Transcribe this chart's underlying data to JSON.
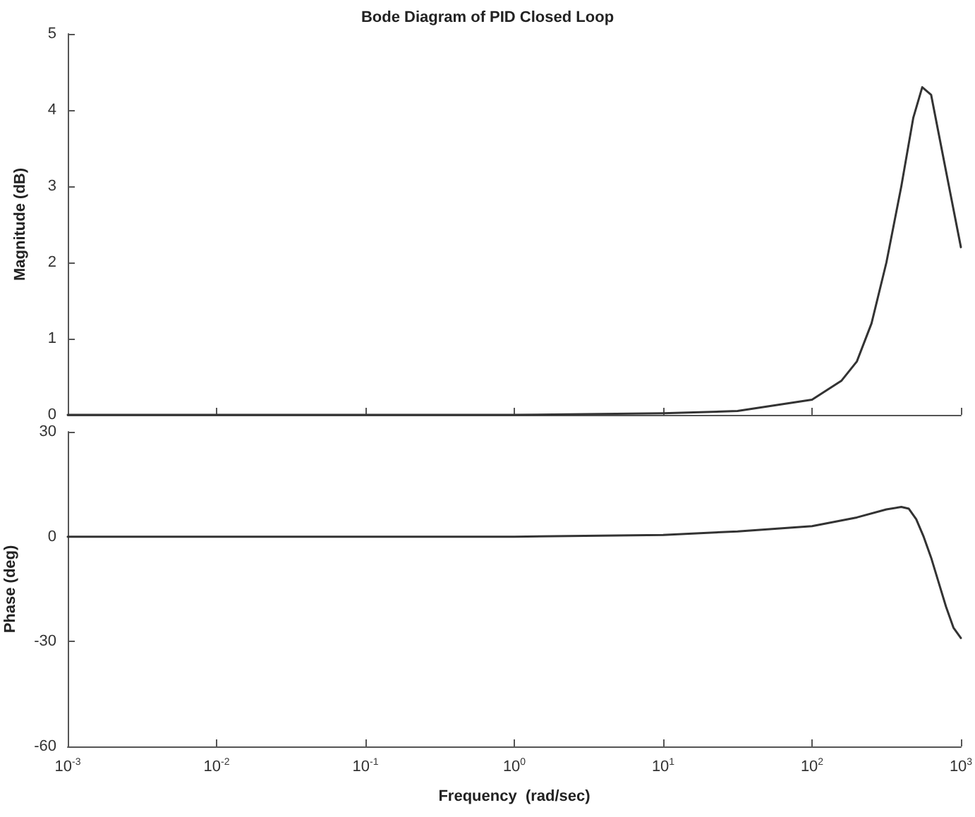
{
  "chart_data": [
    {
      "type": "line",
      "title": "Bode Diagram of PID Closed Loop",
      "ylabel": "Magnitude (dB)",
      "log": "x",
      "grid": false,
      "marker": "none",
      "line_style": "solid",
      "tick_labels": "y",
      "xlim": [
        0.001,
        1000
      ],
      "xticks": [
        {
          "value": 0.001,
          "label": null
        },
        {
          "value": 0.01,
          "label": null
        },
        {
          "value": 0.1,
          "label": null
        },
        {
          "value": 1,
          "label": null
        },
        {
          "value": 10,
          "label": null
        },
        {
          "value": 100,
          "label": null
        },
        {
          "value": 1000,
          "label": null
        }
      ],
      "ylim": [
        0,
        5
      ],
      "yticks": [
        0,
        1,
        2,
        3,
        4,
        5
      ],
      "series": [
        {
          "color": "#333333",
          "x": [
            0.001,
            0.01,
            0.1,
            1,
            10,
            31.6,
            100,
            158,
            200,
            251,
            316,
            398,
            479,
            550,
            631,
            794,
            1000
          ],
          "values": [
            0,
            0,
            0,
            0,
            0.02,
            0.05,
            0.2,
            0.45,
            0.7,
            1.2,
            2.0,
            3.0,
            3.9,
            4.3,
            4.2,
            3.2,
            2.2
          ]
        }
      ]
    },
    {
      "type": "line",
      "xlabel": "Frequency  (rad/sec)",
      "ylabel": "Phase (deg)",
      "log": "x",
      "grid": false,
      "marker": "none",
      "line_style": "solid",
      "xlim": [
        0.001,
        1000
      ],
      "xticks": [
        {
          "value": 0.001,
          "label": "10$^{-3}$"
        },
        {
          "value": 0.01,
          "label": "10$^{-2}$"
        },
        {
          "value": 0.1,
          "label": "10$^{-1}$"
        },
        {
          "value": 1,
          "label": "10$^{0}$"
        },
        {
          "value": 10,
          "label": "10$^{1}$"
        },
        {
          "value": 100,
          "label": "10$^{2}$"
        },
        {
          "value": 1000,
          "label": "10$^{3}$"
        }
      ],
      "ylim": [
        -60,
        30
      ],
      "yticks": [
        -60,
        -30,
        0,
        30
      ],
      "series": [
        {
          "color": "#333333",
          "x": [
            0.001,
            0.01,
            0.1,
            1,
            10,
            31.6,
            100,
            200,
            316,
            398,
            447,
            501,
            562,
            631,
            708,
            794,
            891,
            1000
          ],
          "values": [
            0,
            0,
            0,
            0,
            0.5,
            1.5,
            3,
            5.5,
            7.8,
            8.5,
            8,
            5,
            0,
            -6,
            -13,
            -20,
            -26,
            -29
          ]
        }
      ]
    }
  ]
}
